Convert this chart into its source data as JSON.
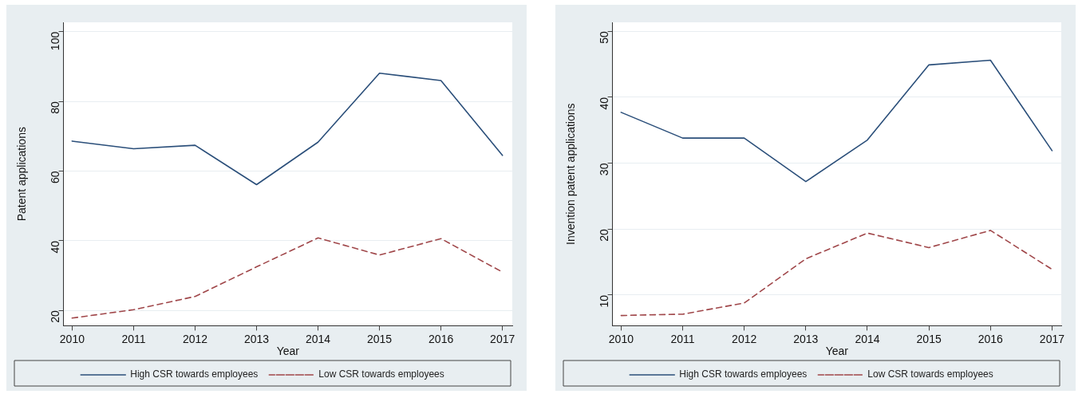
{
  "chart_data": [
    {
      "type": "line",
      "xlabel": "Year",
      "ylabel": "Patent applications",
      "x": [
        2010,
        2011,
        2012,
        2013,
        2014,
        2015,
        2016,
        2017
      ],
      "xlim": [
        2009.86,
        2017.16
      ],
      "xticks": [
        2010,
        2011,
        2012,
        2013,
        2014,
        2015,
        2016,
        2017
      ],
      "ylim": [
        15.6,
        102.7
      ],
      "yticks": [
        20,
        40,
        60,
        80,
        100
      ],
      "grid": "y",
      "legend": "bottom",
      "marker": "none",
      "series": [
        {
          "name": "High CSR towards employees",
          "color": "#2b4f7a",
          "line_style": "solid",
          "values": [
            68.6,
            66.4,
            67.4,
            56.1,
            68.3,
            88.1,
            86.0,
            64.5
          ]
        },
        {
          "name": "Low CSR towards employees",
          "color": "#a0474a",
          "line_style": "dashed",
          "values": [
            17.8,
            20.2,
            24.0,
            32.5,
            40.8,
            35.9,
            40.6,
            31.0
          ]
        }
      ]
    },
    {
      "type": "line",
      "xlabel": "Year",
      "ylabel": "Invention patent applications",
      "x": [
        2010,
        2011,
        2012,
        2013,
        2014,
        2015,
        2016,
        2017
      ],
      "xlim": [
        2009.86,
        2017.15
      ],
      "xticks": [
        2010,
        2011,
        2012,
        2013,
        2014,
        2015,
        2016,
        2017
      ],
      "ylim": [
        5.35,
        51.35
      ],
      "yticks": [
        10,
        20,
        30,
        40,
        50
      ],
      "grid": "y",
      "legend": "bottom",
      "marker": "none",
      "series": [
        {
          "name": "High CSR towards employees",
          "color": "#2b4f7a",
          "line_style": "solid",
          "values": [
            37.7,
            33.8,
            33.8,
            27.2,
            33.5,
            44.9,
            45.6,
            31.9
          ]
        },
        {
          "name": "Low CSR towards employees",
          "color": "#a0474a",
          "line_style": "dashed",
          "values": [
            6.9,
            7.1,
            8.8,
            15.5,
            19.4,
            17.2,
            19.8,
            13.9
          ]
        }
      ]
    }
  ]
}
